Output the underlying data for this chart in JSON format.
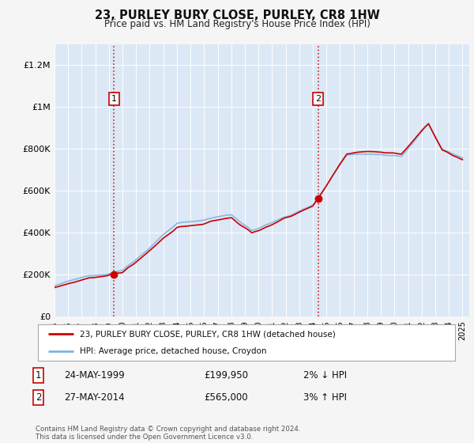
{
  "title": "23, PURLEY BURY CLOSE, PURLEY, CR8 1HW",
  "subtitle": "Price paid vs. HM Land Registry's House Price Index (HPI)",
  "background_color": "#f5f5f5",
  "plot_bg_color": "#dce8f5",
  "ylim": [
    0,
    1300000
  ],
  "yticks": [
    0,
    200000,
    400000,
    600000,
    800000,
    1000000,
    1200000
  ],
  "ytick_labels": [
    "£0",
    "£200K",
    "£400K",
    "£600K",
    "£800K",
    "£1M",
    "£1.2M"
  ],
  "sale1_x": 1999.38,
  "sale1_y": 199950,
  "sale2_x": 2014.38,
  "sale2_y": 565000,
  "legend_line1": "23, PURLEY BURY CLOSE, PURLEY, CR8 1HW (detached house)",
  "legend_line2": "HPI: Average price, detached house, Croydon",
  "table_row1": [
    "1",
    "24-MAY-1999",
    "£199,950",
    "2% ↓ HPI"
  ],
  "table_row2": [
    "2",
    "27-MAY-2014",
    "£565,000",
    "3% ↑ HPI"
  ],
  "footer": "Contains HM Land Registry data © Crown copyright and database right 2024.\nThis data is licensed under the Open Government Licence v3.0.",
  "hpi_color": "#7fb3e0",
  "price_color": "#cc0000",
  "vline_color": "#cc0000",
  "xmin": 1995,
  "xmax": 2025.5
}
